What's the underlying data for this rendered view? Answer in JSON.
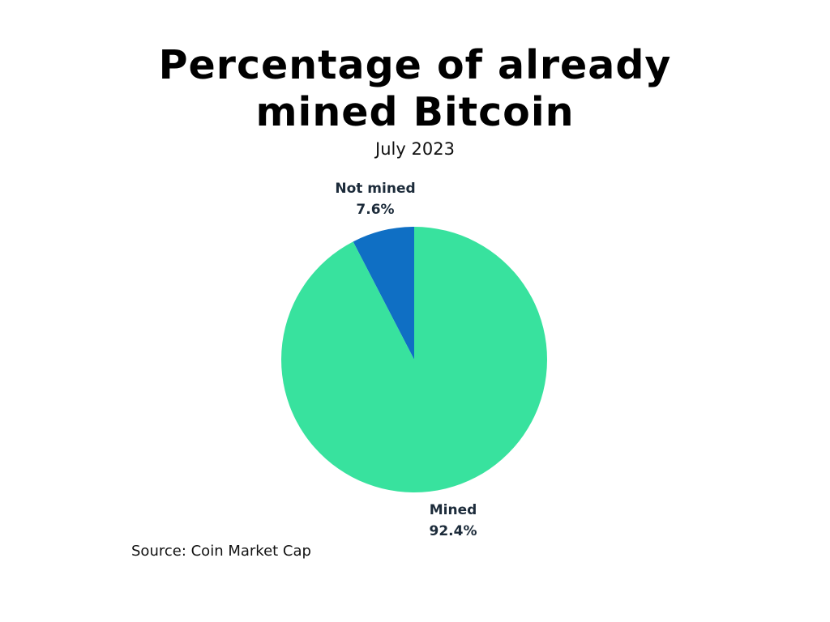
{
  "title_lines": [
    "Percentage of already",
    "mined Bitcoin"
  ],
  "subtitle": "July 2023",
  "source": "Source: Coin Market Cap",
  "chart_data": {
    "type": "pie",
    "title": "Percentage of already mined Bitcoin",
    "subtitle": "July 2023",
    "slices": [
      {
        "name": "Not mined",
        "value": 7.6,
        "label": "7.6%",
        "color": "#0f6fc4"
      },
      {
        "name": "Mined",
        "value": 92.4,
        "label": "92.4%",
        "color": "#38e29e"
      }
    ],
    "start_angle": "top, clockwise",
    "legend": "none (direct labels)"
  }
}
